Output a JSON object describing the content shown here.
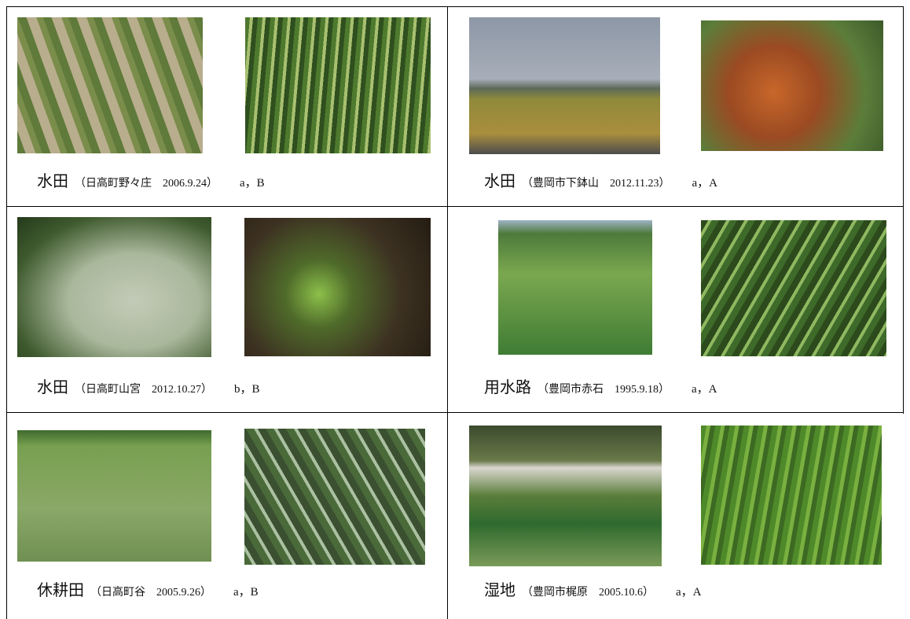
{
  "rows": [
    [
      {
        "habitat": "水田",
        "location": "（日高町野々庄　2006.9.24）",
        "grade": "a，B"
      },
      {
        "habitat": "水田",
        "location": "（豊岡市下鉢山　2012.11.23）",
        "grade": "a，A"
      }
    ],
    [
      {
        "habitat": "水田",
        "location": "（日高町山宮　2012.10.27）",
        "grade": "b，B"
      },
      {
        "habitat": "用水路",
        "location": "（豊岡市赤石　1995.9.18）",
        "grade": "a，A"
      }
    ],
    [
      {
        "habitat": "休耕田",
        "location": "（日高町谷　2005.9.26）",
        "grade": "a，B"
      },
      {
        "habitat": "湿地",
        "location": "（豊岡市梶原　2005.10.6）",
        "grade": "a，A"
      }
    ]
  ]
}
